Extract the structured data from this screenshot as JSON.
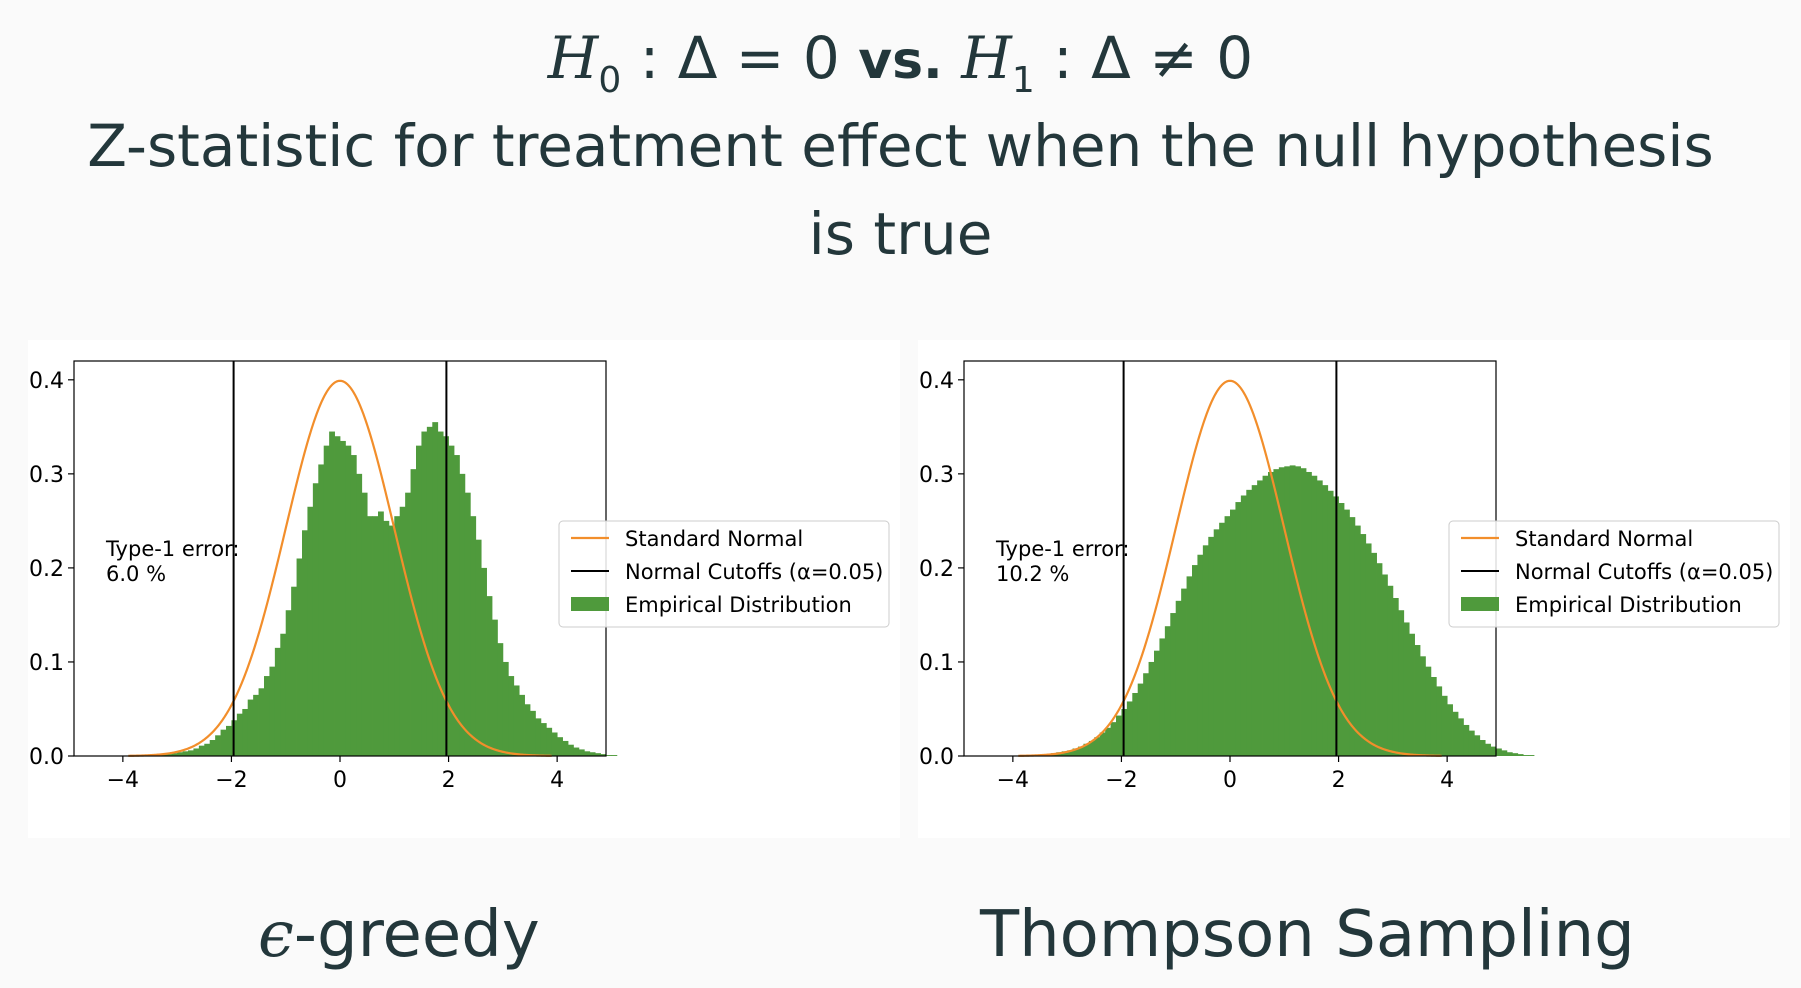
{
  "title": {
    "hyp_h0": "H",
    "hyp_h0_sub": "0",
    "hyp_mid1": " : Δ = 0 ",
    "hyp_vs": "vs.",
    "hyp_h1": " H",
    "hyp_h1_sub": "1",
    "hyp_mid2": " : Δ ≠ 0",
    "headline": "Z-statistic for treatment effect when the null hypothesis is true"
  },
  "captions": {
    "left_eps": "ϵ",
    "left_rest": "-greedy",
    "right": "Thompson Sampling"
  },
  "colors": {
    "hist": "#4f9a3c",
    "normal_curve": "#f28e2b",
    "cutoff": "#000000",
    "background": "#fafafa",
    "text": "#23373b"
  },
  "chart_data": [
    {
      "type": "bar",
      "title": "",
      "xlabel": "",
      "ylabel": "",
      "xlim": [
        -4.9,
        4.9
      ],
      "ylim": [
        0,
        0.42
      ],
      "xticks": [
        -4,
        -2,
        0,
        2,
        4
      ],
      "xtick_labels": [
        "−4",
        "−2",
        "0",
        "2",
        "4"
      ],
      "yticks": [
        0.0,
        0.1,
        0.2,
        0.3,
        0.4
      ],
      "ytick_labels": [
        "0.0",
        "0.1",
        "0.2",
        "0.3",
        "0.4"
      ],
      "grid": false,
      "legend_position": "right",
      "legend": [
        "Standard Normal",
        "Normal Cutoffs (α=0.05)",
        "Empirical Distribution"
      ],
      "cutoffs": [
        -1.96,
        1.96
      ],
      "annotation": [
        "Type-1 error:",
        "6.0 %"
      ],
      "series": [
        {
          "name": "Empirical Distribution",
          "kind": "histogram",
          "bin_width": 0.1,
          "x_start": -4.0,
          "values": [
            0.0,
            0.0,
            0.0,
            0.0,
            0.0,
            0.001,
            0.001,
            0.002,
            0.002,
            0.003,
            0.004,
            0.005,
            0.006,
            0.008,
            0.011,
            0.013,
            0.017,
            0.022,
            0.028,
            0.032,
            0.038,
            0.045,
            0.05,
            0.06,
            0.065,
            0.072,
            0.085,
            0.095,
            0.115,
            0.13,
            0.155,
            0.18,
            0.21,
            0.24,
            0.265,
            0.29,
            0.31,
            0.33,
            0.345,
            0.34,
            0.335,
            0.33,
            0.32,
            0.3,
            0.28,
            0.255,
            0.255,
            0.26,
            0.25,
            0.245,
            0.255,
            0.265,
            0.28,
            0.305,
            0.33,
            0.345,
            0.35,
            0.355,
            0.345,
            0.34,
            0.33,
            0.32,
            0.3,
            0.28,
            0.255,
            0.23,
            0.2,
            0.17,
            0.145,
            0.12,
            0.1,
            0.085,
            0.075,
            0.065,
            0.055,
            0.048,
            0.04,
            0.035,
            0.03,
            0.025,
            0.02,
            0.016,
            0.012,
            0.009,
            0.007,
            0.005,
            0.004,
            0.003,
            0.002,
            0.001,
            0.001,
            0.0,
            0.0,
            0.0,
            0.0,
            0.0,
            0.0,
            0.0,
            0.0,
            0.0
          ]
        },
        {
          "name": "Standard Normal",
          "kind": "pdf",
          "mean": 0,
          "sd": 1
        }
      ]
    },
    {
      "type": "bar",
      "title": "",
      "xlabel": "",
      "ylabel": "",
      "xlim": [
        -4.9,
        4.9
      ],
      "ylim": [
        0,
        0.42
      ],
      "xticks": [
        -4,
        -2,
        0,
        2,
        4
      ],
      "xtick_labels": [
        "−4",
        "−2",
        "0",
        "2",
        "4"
      ],
      "yticks": [
        0.0,
        0.1,
        0.2,
        0.3,
        0.4
      ],
      "ytick_labels": [
        "0.0",
        "0.1",
        "0.2",
        "0.3",
        "0.4"
      ],
      "grid": false,
      "legend_position": "right",
      "legend": [
        "Standard Normal",
        "Normal Cutoffs (α=0.05)",
        "Empirical Distribution"
      ],
      "cutoffs": [
        -1.96,
        1.96
      ],
      "annotation": [
        "Type-1 error:",
        "10.2 %"
      ],
      "series": [
        {
          "name": "Empirical Distribution",
          "kind": "histogram",
          "bin_width": 0.1,
          "x_start": -4.0,
          "values": [
            0.0,
            0.0,
            0.0,
            0.0,
            0.001,
            0.001,
            0.002,
            0.003,
            0.004,
            0.005,
            0.006,
            0.008,
            0.01,
            0.013,
            0.016,
            0.02,
            0.025,
            0.03,
            0.036,
            0.043,
            0.05,
            0.058,
            0.067,
            0.077,
            0.088,
            0.1,
            0.112,
            0.125,
            0.138,
            0.152,
            0.165,
            0.178,
            0.191,
            0.203,
            0.214,
            0.224,
            0.233,
            0.241,
            0.248,
            0.255,
            0.262,
            0.27,
            0.277,
            0.283,
            0.288,
            0.293,
            0.298,
            0.302,
            0.305,
            0.307,
            0.308,
            0.309,
            0.308,
            0.306,
            0.302,
            0.298,
            0.293,
            0.288,
            0.282,
            0.276,
            0.269,
            0.262,
            0.254,
            0.245,
            0.236,
            0.226,
            0.216,
            0.205,
            0.193,
            0.181,
            0.168,
            0.155,
            0.142,
            0.13,
            0.118,
            0.106,
            0.095,
            0.084,
            0.074,
            0.064,
            0.055,
            0.047,
            0.04,
            0.033,
            0.027,
            0.022,
            0.017,
            0.013,
            0.01,
            0.008,
            0.006,
            0.004,
            0.003,
            0.002,
            0.001,
            0.001,
            0.0,
            0.0,
            0.0,
            0.0
          ]
        },
        {
          "name": "Standard Normal",
          "kind": "pdf",
          "mean": 0,
          "sd": 1
        }
      ]
    }
  ]
}
